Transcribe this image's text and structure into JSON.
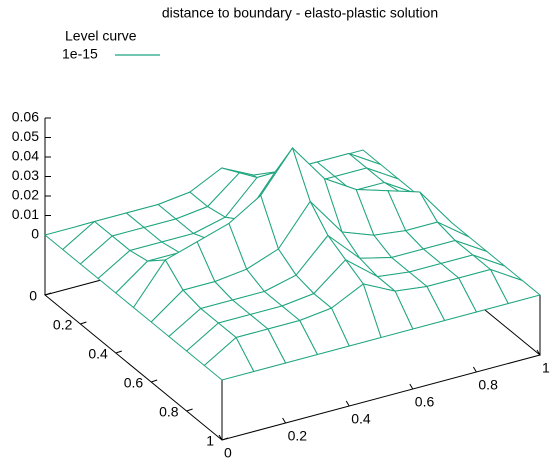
{
  "chart_data": {
    "type": "surface",
    "title": "distance to boundary - elasto-plastic solution",
    "legend_title": "Level curve",
    "series": [
      {
        "name": "1e-15",
        "color": "#1fa57f"
      }
    ],
    "x": [
      0,
      0.1,
      0.2,
      0.3,
      0.4,
      0.5,
      0.6,
      0.7,
      0.8,
      0.9,
      1
    ],
    "y": [
      0,
      0.1,
      0.2,
      0.3,
      0.4,
      0.5,
      0.6,
      0.7,
      0.8,
      0.9,
      1
    ],
    "z": [
      [
        0,
        0,
        0,
        0,
        0,
        0,
        0,
        0,
        0,
        0,
        0
      ],
      [
        0,
        0.01,
        0.01,
        0.01,
        0.012,
        0.02,
        0.012,
        0.01,
        0.01,
        0.01,
        0
      ],
      [
        0,
        0.01,
        0.01,
        0.01,
        0.012,
        0.025,
        0.012,
        0.01,
        0.01,
        0.01,
        0
      ],
      [
        0,
        0.01,
        0.01,
        0.01,
        0.014,
        0.03,
        0.014,
        0.01,
        0.01,
        0.01,
        0
      ],
      [
        0,
        0.012,
        0.012,
        0.014,
        0.02,
        0.04,
        0.02,
        0.014,
        0.012,
        0.012,
        0
      ],
      [
        0,
        0.02,
        0.025,
        0.03,
        0.04,
        0.06,
        0.04,
        0.03,
        0.025,
        0.02,
        0
      ],
      [
        0,
        0.012,
        0.012,
        0.014,
        0.02,
        0.04,
        0.02,
        0.014,
        0.012,
        0.012,
        0
      ],
      [
        0,
        0.01,
        0.01,
        0.01,
        0.014,
        0.03,
        0.014,
        0.01,
        0.01,
        0.01,
        0
      ],
      [
        0,
        0.01,
        0.01,
        0.01,
        0.012,
        0.025,
        0.012,
        0.01,
        0.01,
        0.01,
        0
      ],
      [
        0,
        0.01,
        0.01,
        0.01,
        0.012,
        0.02,
        0.012,
        0.01,
        0.01,
        0.01,
        0
      ],
      [
        0,
        0,
        0,
        0,
        0,
        0,
        0,
        0,
        0,
        0,
        0
      ]
    ],
    "xlim": [
      0,
      1
    ],
    "ylim": [
      0,
      1
    ],
    "zlim": [
      0,
      0.06
    ],
    "xticks": [
      0,
      0.2,
      0.4,
      0.6,
      0.8,
      1
    ],
    "yticks": [
      0,
      0.2,
      0.4,
      0.6,
      0.8,
      1
    ],
    "zticks": [
      0,
      0.01,
      0.02,
      0.03,
      0.04,
      0.05,
      0.06
    ]
  }
}
